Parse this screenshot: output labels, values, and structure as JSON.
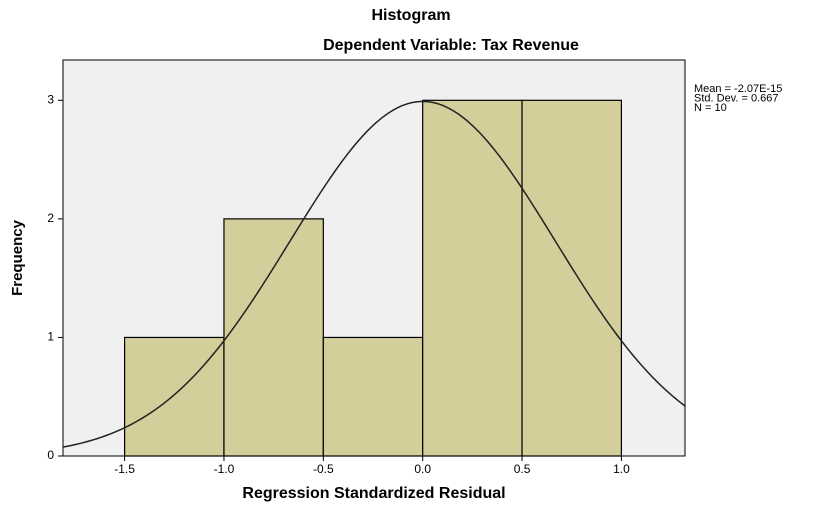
{
  "chart_data": {
    "type": "histogram",
    "title": "Histogram",
    "subtitle": "Dependent Variable: Tax Revenue",
    "xlabel": "Regression Standardized Residual",
    "ylabel": "Frequency",
    "bins": [
      -1.5,
      -1.0,
      -0.5,
      0.0,
      0.5,
      1.0
    ],
    "values": [
      1,
      2,
      1,
      3,
      3
    ],
    "color": "#d3ce9a",
    "xlim": [
      -1.81,
      1.32
    ],
    "ylim": [
      0,
      3.34
    ],
    "xticks": [
      -1.5,
      {
        "value": -1.0,
        "label": "-1.0"
      },
      -0.5,
      {
        "value": 0.0,
        "label": "0.0"
      },
      0.5,
      {
        "value": 1.0,
        "label": "1.0"
      }
    ],
    "yticks": [
      0,
      1,
      2,
      3
    ],
    "stats": [
      {
        "value": -2.07e-15,
        "label": "Mean = -2.07E-15"
      },
      {
        "value": 0.667,
        "label": "Std. Dev. = 0.667"
      },
      {
        "value": 10,
        "label": "N = 10"
      }
    ]
  }
}
